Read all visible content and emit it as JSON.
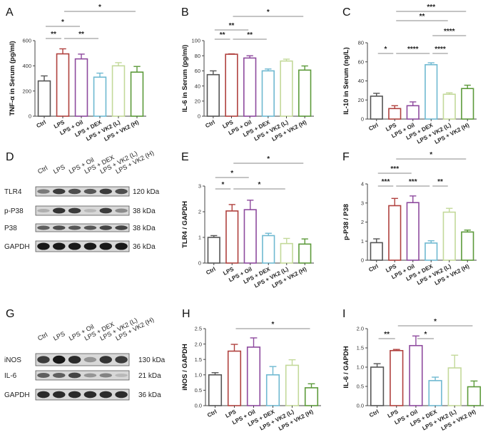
{
  "colors": {
    "Ctrl": "#555555",
    "LPS": "#b0413e",
    "LPS + Oil": "#8e4a9e",
    "LPS + DEX": "#6fb9d1",
    "LPS + VK2 (L)": "#c3d99a",
    "LPS + VK2 (H)": "#5c9a3a"
  },
  "groups": [
    "Ctrl",
    "LPS",
    "LPS + Oil",
    "LPS + DEX",
    "LPS + VK2 (L)",
    "LPS + VK2 (H)"
  ],
  "chart_data": [
    {
      "id": "A",
      "panel": "A",
      "type": "bar",
      "ylabel": "TNF-α in Serum (pg/ml)",
      "ylim": [
        0,
        600
      ],
      "yticks": [
        "0",
        "200",
        "400",
        "600"
      ],
      "ytick_values": [
        0,
        200,
        400,
        600
      ],
      "categories": [
        "Ctrl",
        "LPS",
        "LPS + Oil",
        "LPS + DEX",
        "LPS + VK2 (L)",
        "LPS + VK2 (H)"
      ],
      "values": [
        280,
        495,
        455,
        310,
        400,
        350
      ],
      "errors": [
        40,
        40,
        38,
        32,
        25,
        45
      ],
      "significance": [
        {
          "from": 0,
          "to": 1,
          "label": "**",
          "level": 0
        },
        {
          "from": 1,
          "to": 3,
          "label": "**",
          "level": 0
        },
        {
          "from": 0,
          "to": 2,
          "label": "*",
          "level": 1
        },
        {
          "from": 1,
          "to": 5,
          "label": "*",
          "level": 2
        }
      ]
    },
    {
      "id": "B",
      "panel": "B",
      "type": "bar",
      "ylabel": "IL-6 in Serum (pg/ml)",
      "ylim": [
        0,
        100
      ],
      "yticks": [
        "0",
        "20",
        "40",
        "60",
        "80",
        "100"
      ],
      "ytick_values": [
        0,
        20,
        40,
        60,
        80,
        100
      ],
      "categories": [
        "Ctrl",
        "LPS",
        "LPS + Oil",
        "LPS + DEX",
        "LPS + VK2 (L)",
        "LPS + VK2 (H)"
      ],
      "values": [
        55,
        82,
        77,
        60,
        73,
        61
      ],
      "errors": [
        5,
        0.5,
        3,
        2.5,
        2.5,
        5.5
      ],
      "significance": [
        {
          "from": 0,
          "to": 1,
          "label": "**",
          "level": 0
        },
        {
          "from": 1,
          "to": 3,
          "label": "**",
          "level": 0
        },
        {
          "from": 0,
          "to": 2,
          "label": "**",
          "level": 1
        },
        {
          "from": 1,
          "to": 5,
          "label": "*",
          "level": 2
        }
      ]
    },
    {
      "id": "C",
      "panel": "C",
      "type": "bar",
      "ylabel": "IL-10 in Serum (ng/L)",
      "ylim": [
        0,
        80
      ],
      "yticks": [
        "0",
        "20",
        "40",
        "60",
        "80"
      ],
      "ytick_values": [
        0,
        20,
        40,
        60,
        80
      ],
      "categories": [
        "Ctrl",
        "LPS",
        "LPS + Oil",
        "LPS + DEX",
        "LPS + VK2 (L)",
        "LPS + VK2 (H)"
      ],
      "values": [
        24,
        11,
        14,
        57,
        26,
        32
      ],
      "errors": [
        3,
        3,
        4,
        2,
        1.5,
        3.5
      ],
      "significance": [
        {
          "from": 0,
          "to": 1,
          "label": "*",
          "level": 0
        },
        {
          "from": 1,
          "to": 3,
          "label": "****",
          "level": 0
        },
        {
          "from": 3,
          "to": 4,
          "label": "****",
          "level": 0
        },
        {
          "from": 3,
          "to": 5,
          "label": "****",
          "level": 1
        },
        {
          "from": 1,
          "to": 4,
          "label": "**",
          "level": 2
        },
        {
          "from": 1,
          "to": 5,
          "label": "***",
          "level": 3
        }
      ]
    },
    {
      "id": "E",
      "panel": "E",
      "type": "bar",
      "ylabel": "TLR4 / GAPDH",
      "ylim": [
        0,
        3
      ],
      "yticks": [
        "0",
        "1",
        "2",
        "3"
      ],
      "ytick_values": [
        0,
        1,
        2,
        3
      ],
      "categories": [
        "Ctrl",
        "LPS",
        "LPS + Oil",
        "LPS + DEX",
        "LPS + VK2 (L)",
        "LPS + VK2 (H)"
      ],
      "values": [
        1.0,
        2.03,
        2.08,
        1.07,
        0.76,
        0.74
      ],
      "errors": [
        0.07,
        0.25,
        0.37,
        0.09,
        0.2,
        0.2
      ],
      "significance": [
        {
          "from": 0,
          "to": 1,
          "label": "*",
          "level": 0
        },
        {
          "from": 1,
          "to": 4,
          "label": "*",
          "level": 0
        },
        {
          "from": 0,
          "to": 2,
          "label": "*",
          "level": 1
        },
        {
          "from": 1,
          "to": 5,
          "label": "*",
          "level": 2
        }
      ]
    },
    {
      "id": "F",
      "panel": "F",
      "type": "bar",
      "ylabel": "p-P38 / P38",
      "ylim": [
        0,
        4
      ],
      "yticks": [
        "0",
        "1",
        "2",
        "3",
        "4"
      ],
      "ytick_values": [
        0,
        1,
        2,
        3,
        4
      ],
      "categories": [
        "Ctrl",
        "LPS",
        "LPS + Oil",
        "LPS + DEX",
        "LPS + VK2 (L)",
        "LPS + VK2 (H)"
      ],
      "values": [
        0.92,
        2.86,
        3.02,
        0.9,
        2.52,
        1.48
      ],
      "errors": [
        0.2,
        0.38,
        0.35,
        0.12,
        0.2,
        0.1
      ],
      "significance": [
        {
          "from": 0,
          "to": 1,
          "label": "***",
          "level": 0
        },
        {
          "from": 1,
          "to": 3,
          "label": "***",
          "level": 0
        },
        {
          "from": 3,
          "to": 4,
          "label": "**",
          "level": 0
        },
        {
          "from": 0,
          "to": 2,
          "label": "***",
          "level": 1
        },
        {
          "from": 1,
          "to": 5,
          "label": "*",
          "level": 2
        }
      ]
    },
    {
      "id": "H",
      "panel": "H",
      "type": "bar",
      "ylabel": "iNOS / GAPDH",
      "ylim": [
        0,
        2.5
      ],
      "yticks": [
        "0.0",
        "0.5",
        "1.0",
        "1.5",
        "2.0",
        "2.5"
      ],
      "ytick_values": [
        0,
        0.5,
        1.0,
        1.5,
        2.0,
        2.5
      ],
      "categories": [
        "Ctrl",
        "LPS",
        "LPS + Oil",
        "LPS + DEX",
        "LPS + VK2 (L)",
        "LPS + VK2 (H)"
      ],
      "values": [
        1.0,
        1.77,
        1.9,
        1.0,
        1.31,
        0.58
      ],
      "errors": [
        0.07,
        0.22,
        0.3,
        0.27,
        0.18,
        0.13
      ],
      "significance": [
        {
          "from": 1,
          "to": 5,
          "label": "*",
          "level": 0
        }
      ]
    },
    {
      "id": "I",
      "panel": "I",
      "type": "bar",
      "ylabel": "IL-6 / GAPDH",
      "ylim": [
        0,
        2.0
      ],
      "yticks": [
        "0.0",
        "0.5",
        "1.0",
        "1.5",
        "2.0"
      ],
      "ytick_values": [
        0,
        0.5,
        1.0,
        1.5,
        2.0
      ],
      "categories": [
        "Ctrl",
        "LPS",
        "LPS + Oil",
        "LPS + DEX",
        "LPS + VK2 (L)",
        "LPS + VK2 (H)"
      ],
      "values": [
        1.0,
        1.43,
        1.56,
        0.65,
        0.98,
        0.49
      ],
      "errors": [
        0.09,
        0.03,
        0.25,
        0.09,
        0.33,
        0.15
      ],
      "significance": [
        {
          "from": 0,
          "to": 1,
          "label": "**",
          "level": 0
        },
        {
          "from": 2,
          "to": 3,
          "label": "*",
          "level": 0
        },
        {
          "from": 1,
          "to": 5,
          "label": "*",
          "level": 1
        }
      ]
    }
  ],
  "blots": [
    {
      "panel": "D",
      "lanes": [
        "Ctrl",
        "LPS",
        "LPS + Oil",
        "LPS + DEX",
        "LPS + VK2 (L)",
        "LPS + VK2 (H)"
      ],
      "rows": [
        {
          "protein": "TLR4",
          "size": "120 kDa",
          "intensity": [
            0.45,
            0.8,
            0.7,
            0.65,
            0.8,
            0.7
          ]
        },
        {
          "protein": "p-P38",
          "size": "38 kDa",
          "intensity": [
            0.15,
            0.85,
            0.8,
            0.1,
            0.8,
            0.35
          ]
        },
        {
          "protein": "P38",
          "size": "38 kDa",
          "intensity": [
            0.6,
            0.7,
            0.65,
            0.65,
            0.75,
            0.75
          ]
        },
        {
          "protein": "GAPDH",
          "size": "36 kDa",
          "intensity": [
            1.0,
            1.0,
            1.0,
            1.0,
            1.0,
            1.0
          ]
        }
      ]
    },
    {
      "panel": "G",
      "lanes": [
        "Ctrl",
        "LPS",
        "LPS + Oil",
        "LPS + DEX",
        "LPS + VK2 (L)",
        "LPS + VK2 (H)"
      ],
      "rows": [
        {
          "protein": "iNOS",
          "size": "130 kDa",
          "intensity": [
            0.8,
            1.0,
            0.9,
            0.3,
            0.85,
            0.8
          ]
        },
        {
          "protein": "IL-6",
          "size": "21 kDa",
          "intensity": [
            0.6,
            0.6,
            0.75,
            0.3,
            0.4,
            0.1
          ]
        },
        {
          "protein": "GAPDH",
          "size": "36 kDa",
          "intensity": [
            0.9,
            0.9,
            0.9,
            0.9,
            0.9,
            0.9
          ]
        }
      ]
    }
  ]
}
